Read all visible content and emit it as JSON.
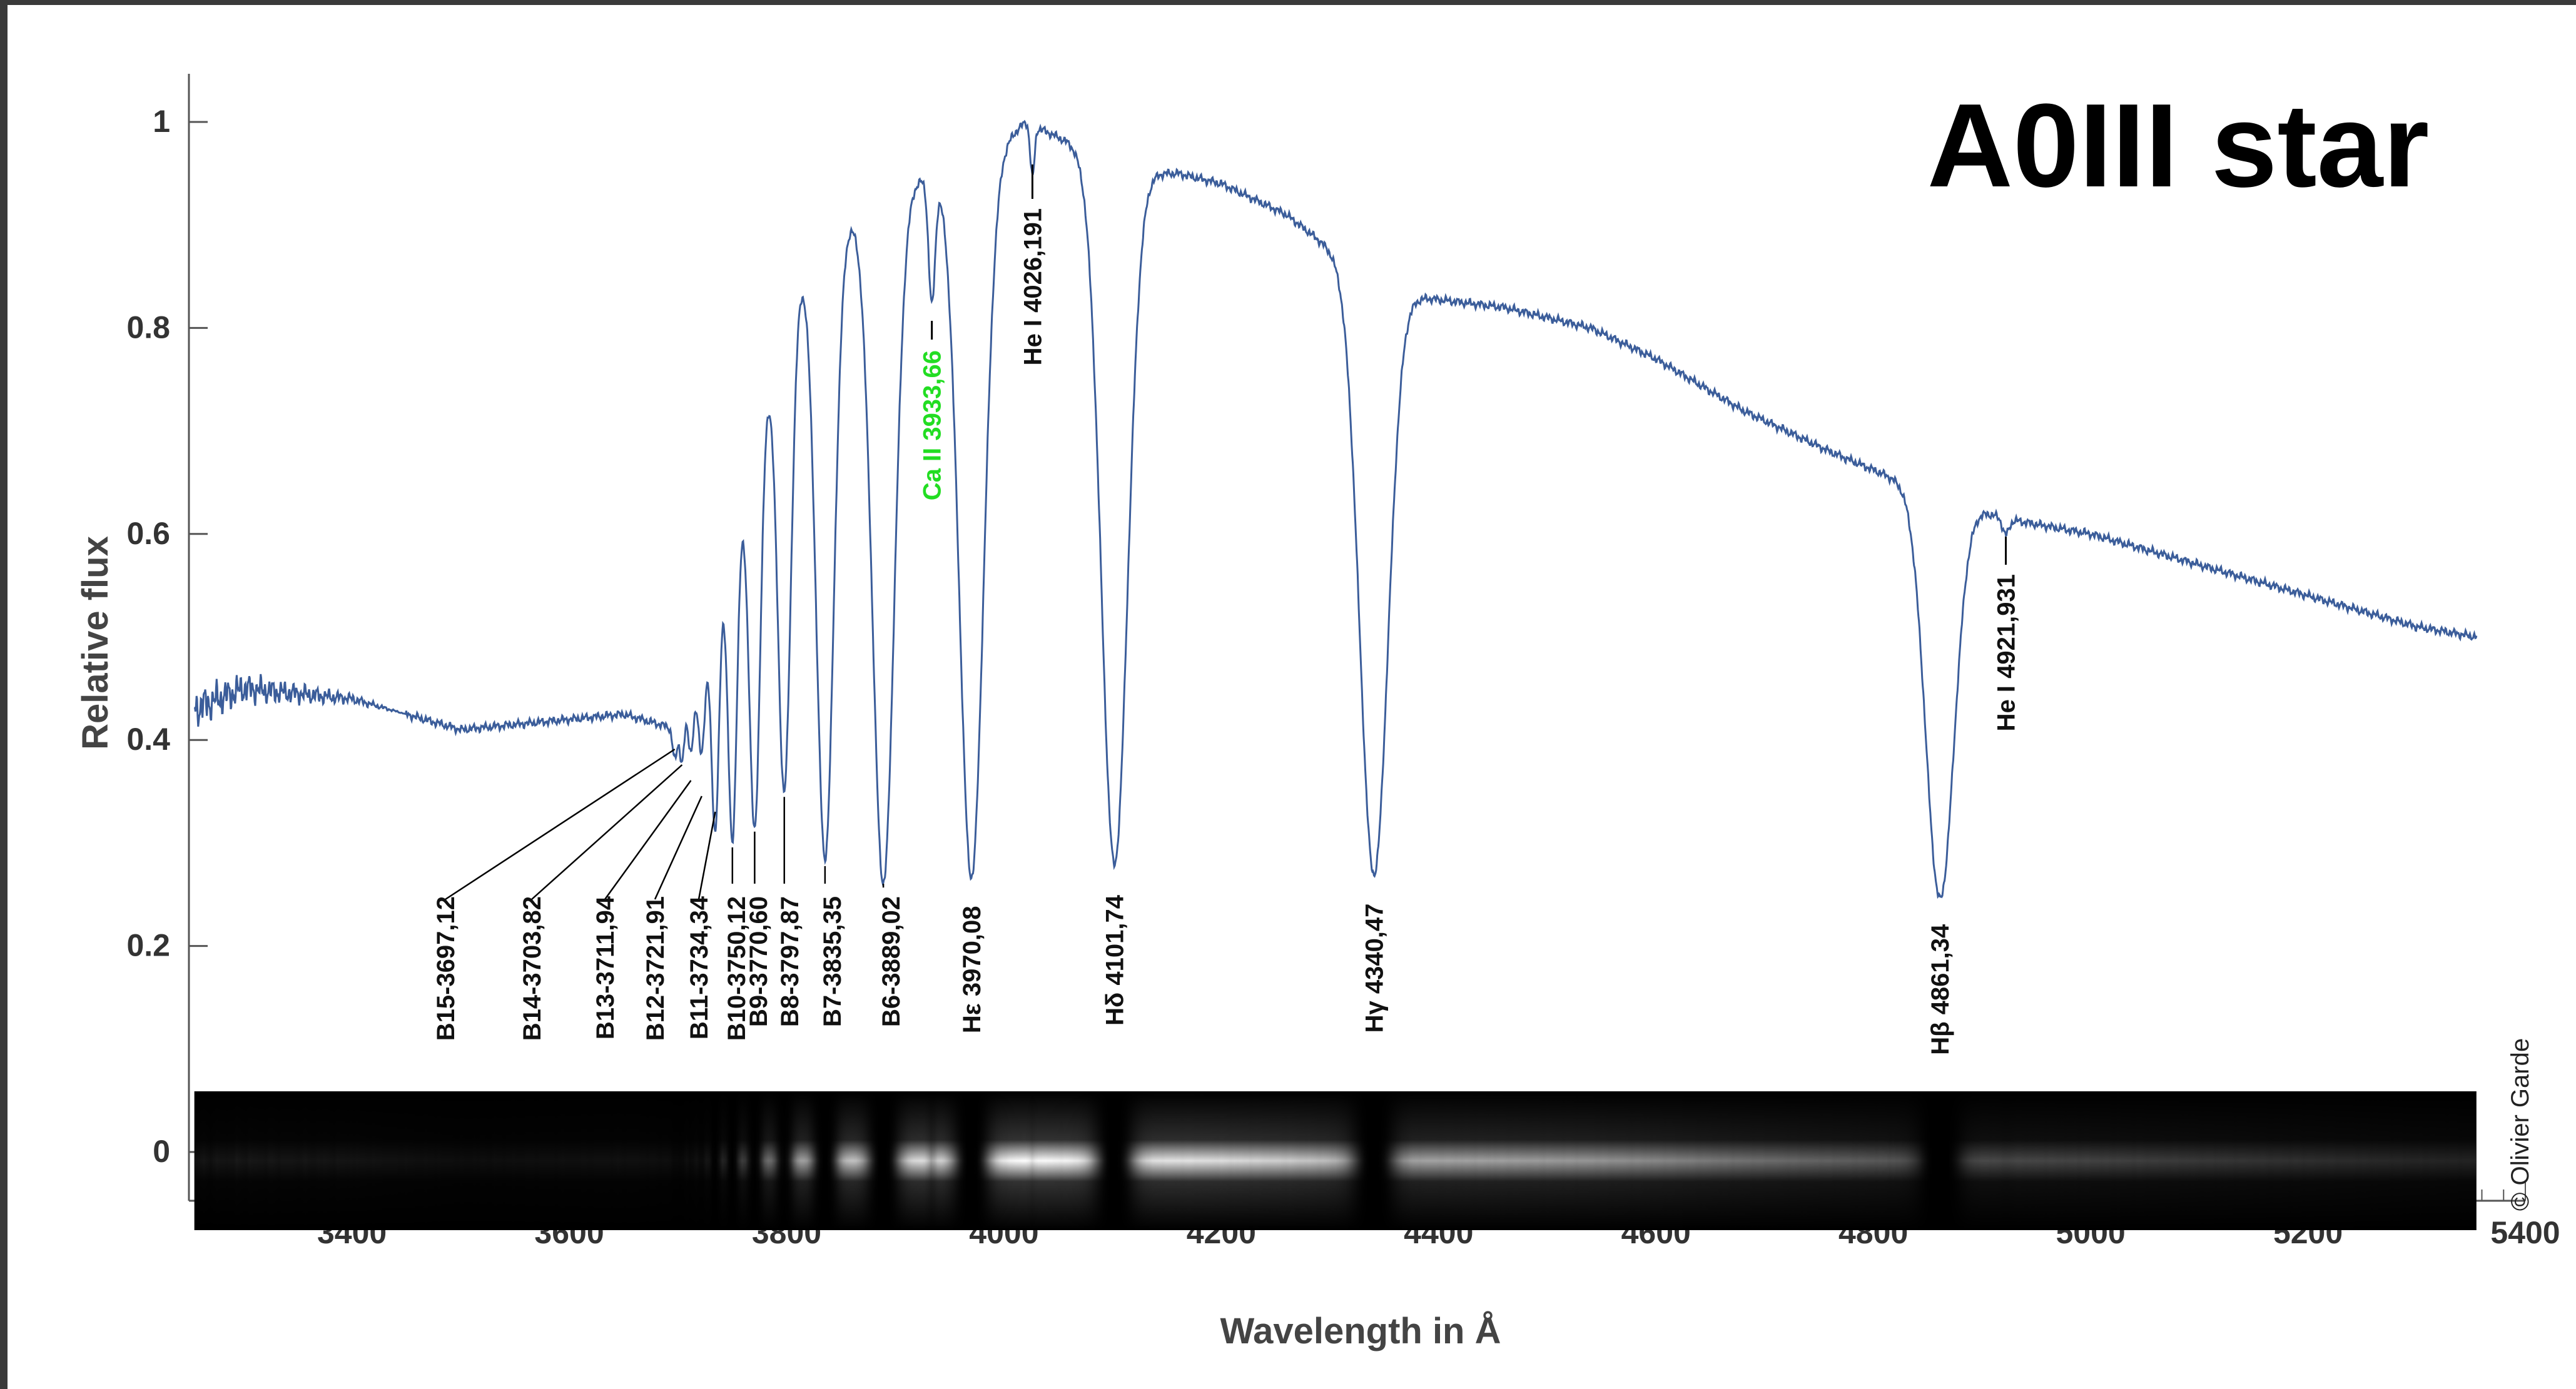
{
  "chart_data": {
    "type": "line",
    "title": "A0III star",
    "xlabel": "Wavelength in Å",
    "ylabel": "Relative flux",
    "credit": "© Olivier Garde",
    "xlim": [
      3250,
      5400
    ],
    "ylim": [
      -0.08,
      1.05
    ],
    "x_ticks": [
      3400,
      3600,
      3800,
      4000,
      4200,
      4400,
      4600,
      4800,
      5000,
      5200,
      5400
    ],
    "y_ticks": [
      0,
      0.2,
      0.4,
      0.6,
      0.8,
      1
    ],
    "y_tick_labels": [
      "0",
      "0.2",
      "0.4",
      "0.6",
      "0.8",
      "1"
    ],
    "line_color": "#3b5d9a",
    "grid": false,
    "legend": "none",
    "continuum": [
      [
        3255,
        0.43
      ],
      [
        3300,
        0.45
      ],
      [
        3400,
        0.44
      ],
      [
        3500,
        0.41
      ],
      [
        3600,
        0.42
      ],
      [
        3650,
        0.425
      ],
      [
        3700,
        0.41
      ],
      [
        3720,
        0.46
      ],
      [
        3740,
        0.56
      ],
      [
        3760,
        0.64
      ],
      [
        3780,
        0.74
      ],
      [
        3800,
        0.83
      ],
      [
        3820,
        0.87
      ],
      [
        3850,
        0.9
      ],
      [
        3900,
        0.94
      ],
      [
        3960,
        0.95
      ],
      [
        3990,
        0.97
      ],
      [
        4020,
        1.0
      ],
      [
        4060,
        0.98
      ],
      [
        4100,
        0.95
      ],
      [
        4160,
        0.95
      ],
      [
        4200,
        0.94
      ],
      [
        4260,
        0.91
      ],
      [
        4320,
        0.86
      ],
      [
        4380,
        0.83
      ],
      [
        4460,
        0.82
      ],
      [
        4540,
        0.8
      ],
      [
        4600,
        0.77
      ],
      [
        4680,
        0.72
      ],
      [
        4760,
        0.68
      ],
      [
        4850,
        0.64
      ],
      [
        4920,
        0.615
      ],
      [
        5000,
        0.6
      ],
      [
        5100,
        0.57
      ],
      [
        5200,
        0.54
      ],
      [
        5300,
        0.51
      ],
      [
        5355,
        0.5
      ]
    ],
    "absorption_lines": [
      {
        "label": "B15-3697,12",
        "wavelength": 3697.12,
        "depth": 0.03,
        "width": 2
      },
      {
        "label": "B14-3703,82",
        "wavelength": 3703.82,
        "depth": 0.04,
        "width": 2
      },
      {
        "label": "B13-3711,94",
        "wavelength": 3711.94,
        "depth": 0.05,
        "width": 2.5
      },
      {
        "label": "B12-3721,91",
        "wavelength": 3721.91,
        "depth": 0.08,
        "width": 3
      },
      {
        "label": "B11-3734,34",
        "wavelength": 3734.34,
        "depth": 0.22,
        "width": 3.5
      },
      {
        "label": "B10-3750,12",
        "wavelength": 3750.12,
        "depth": 0.3,
        "width": 4
      },
      {
        "label": "B9-3770,60",
        "wavelength": 3770.6,
        "depth": 0.38,
        "width": 5
      },
      {
        "label": "B8-3797,87",
        "wavelength": 3797.87,
        "depth": 0.47,
        "width": 6
      },
      {
        "label": "B7-3835,35",
        "wavelength": 3835.35,
        "depth": 0.6,
        "width": 8
      },
      {
        "label": "B6-3889,02",
        "wavelength": 3889.02,
        "depth": 0.67,
        "width": 10
      },
      {
        "label": "Ca II 3933,66",
        "wavelength": 3933.66,
        "depth": 0.12,
        "width": 3,
        "color": "#22dd22"
      },
      {
        "label": "Hε 3970,08",
        "wavelength": 3970.08,
        "depth": 0.69,
        "width": 11
      },
      {
        "label": "He I 4026,191",
        "wavelength": 4026.191,
        "depth": 0.05,
        "width": 2
      },
      {
        "label": "Hδ 4101,74",
        "wavelength": 4101.74,
        "depth": 0.67,
        "width": 12
      },
      {
        "label": "Hγ 4340,47",
        "wavelength": 4340.47,
        "depth": 0.58,
        "width": 13
      },
      {
        "label": "Hβ 4861,34",
        "wavelength": 4861.34,
        "depth": 0.39,
        "width": 13
      },
      {
        "label": "He I 4921,931",
        "wavelength": 4921.931,
        "depth": 0.015,
        "width": 3
      }
    ]
  }
}
